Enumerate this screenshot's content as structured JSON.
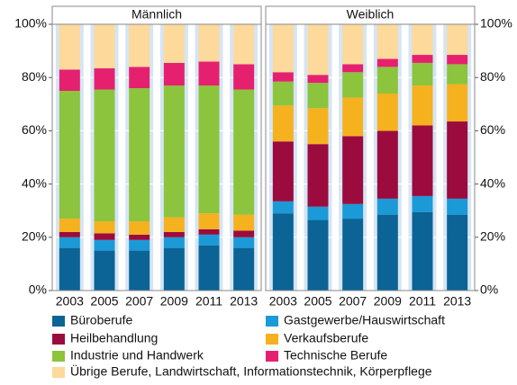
{
  "chart_data": {
    "type": "stacked_bar",
    "categories": [
      "2003",
      "2005",
      "2007",
      "2009",
      "2011",
      "2013"
    ],
    "ylim": [
      0,
      100
    ],
    "yticks": [
      {
        "value": 0,
        "label": "0%"
      },
      {
        "value": 20,
        "label": "20%"
      },
      {
        "value": 40,
        "label": "40%"
      },
      {
        "value": 60,
        "label": "60%"
      },
      {
        "value": 80,
        "label": "80%"
      },
      {
        "value": 100,
        "label": "100%"
      }
    ],
    "series": [
      {
        "name": "Büroberufe",
        "color": "#0b6495"
      },
      {
        "name": "Gastgewerbe/Hauswirtschaft",
        "color": "#1b9ad7"
      },
      {
        "name": "Heilbehandlung",
        "color": "#9c0b3d"
      },
      {
        "name": "Verkaufsberufe",
        "color": "#f6b11f"
      },
      {
        "name": "Industrie und Handwerk",
        "color": "#8cc43d"
      },
      {
        "name": "Technische Berufe",
        "color": "#e5216f"
      },
      {
        "name": "Übrige Berufe, Landwirtschaft, Informationstechnik, Körperpflege",
        "color": "#fdd99b"
      }
    ],
    "panels": [
      {
        "title": "Männlich",
        "values": [
          [
            16,
            15,
            15,
            16,
            17,
            16
          ],
          [
            4,
            4,
            4,
            4,
            4,
            4
          ],
          [
            2,
            2.5,
            2,
            2,
            2,
            2.5
          ],
          [
            5,
            4.5,
            5,
            5.5,
            6,
            6
          ],
          [
            48,
            49.5,
            50,
            49.5,
            48,
            47
          ],
          [
            8,
            8,
            8,
            8.5,
            9,
            9.5
          ],
          [
            17,
            16.5,
            16,
            14.5,
            14,
            15
          ]
        ]
      },
      {
        "title": "Weiblich",
        "values": [
          [
            29,
            26.5,
            27,
            28.5,
            29.5,
            28.5
          ],
          [
            4.5,
            5,
            5.5,
            6,
            6,
            6
          ],
          [
            22.5,
            23.5,
            25.5,
            25.5,
            26.5,
            29
          ],
          [
            13.5,
            13.5,
            14.5,
            14,
            15,
            14
          ],
          [
            9,
            9.5,
            9.5,
            10,
            8.5,
            7.5
          ],
          [
            3.5,
            3,
            3,
            3,
            3,
            3.5
          ],
          [
            18,
            19,
            15,
            13,
            11.5,
            11.5
          ]
        ]
      }
    ]
  }
}
